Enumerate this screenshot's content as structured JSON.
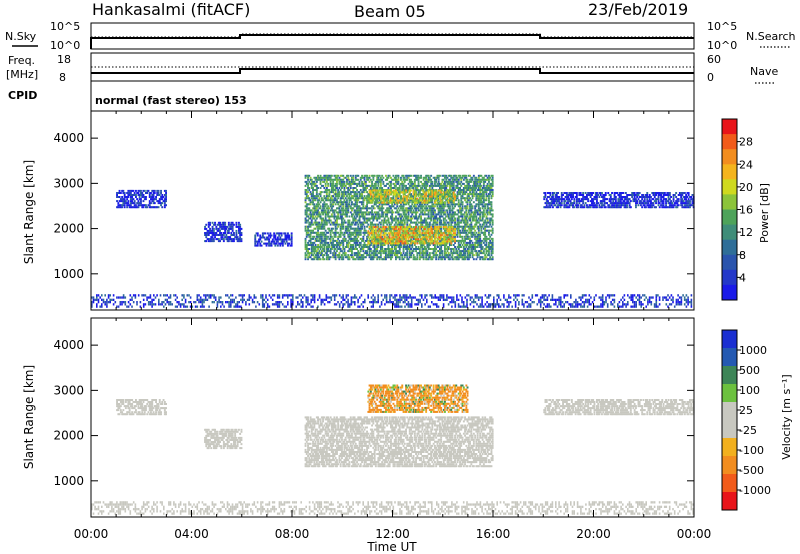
{
  "header": {
    "station": "Hankasalmi (fitACF)",
    "beam": "Beam 05",
    "date": "23/Feb/2019"
  },
  "params": {
    "nsky_label": "N.Sky",
    "nsky_ticks": [
      "10^5",
      "10^0"
    ],
    "nsearch_label": "N.Search",
    "nsearch_ticks": [
      "10^5",
      "10^0"
    ],
    "freq_label": "Freq.",
    "freq_unit": "[MHz]",
    "freq_ticks": [
      "18",
      "8"
    ],
    "nave_label": "Nave",
    "nave_ticks": [
      "60",
      "0"
    ],
    "cpid_label": "CPID",
    "cpid_text": "normal (fast stereo) 153"
  },
  "axes": {
    "ylabel": "Slant Range [km]",
    "xlabel": "Time UT",
    "x_ticks": [
      "00:00",
      "04:00",
      "08:00",
      "12:00",
      "16:00",
      "20:00",
      "00:00"
    ],
    "y_ticks": [
      "4000",
      "3000",
      "2000",
      "1000"
    ]
  },
  "colorbars": {
    "power": {
      "label": "Power [dB]",
      "ticks": [
        "28",
        "24",
        "20",
        "16",
        "12",
        "8",
        "4"
      ],
      "colors": [
        "#e8141a",
        "#f25b1a",
        "#f28d1f",
        "#f4b41d",
        "#cfd91f",
        "#8cc43a",
        "#4ea35a",
        "#3f8d79",
        "#2f6e98",
        "#2a54ad",
        "#2438c9",
        "#1a1ae8"
      ]
    },
    "velocity": {
      "label": "Velocity [m s⁻¹]",
      "ticks": [
        "1000",
        "500",
        "100",
        "25",
        "-25",
        "-100",
        "-500",
        "-1000"
      ],
      "colors": [
        "#1a2fd1",
        "#2459b2",
        "#3d8557",
        "#6cc13f",
        "#c8c8c0",
        "#c8c8c0",
        "#f2b01e",
        "#f28d1f",
        "#f25b1a",
        "#e8141a"
      ]
    }
  },
  "chart_data": [
    {
      "type": "heatmap",
      "name": "Power",
      "title": "",
      "ylabel": "Slant Range [km]",
      "xlabel": "",
      "xlim": [
        "00:00",
        "00:00"
      ],
      "ylim": [
        200,
        4600
      ],
      "regions": [
        {
          "t_start": "01:00",
          "t_end": "03:00",
          "r_start": 2450,
          "r_end": 2850,
          "level_db": 8
        },
        {
          "t_start": "04:30",
          "t_end": "06:00",
          "r_start": 1700,
          "r_end": 2150,
          "level_db": 8
        },
        {
          "t_start": "06:30",
          "t_end": "08:00",
          "r_start": 1600,
          "r_end": 1900,
          "level_db": 8
        },
        {
          "t_start": "08:30",
          "t_end": "16:00",
          "r_start": 1300,
          "r_end": 3150,
          "level_db": 16
        },
        {
          "t_start": "11:00",
          "t_end": "14:30",
          "r_start": 2550,
          "r_end": 2850,
          "level_db": 22
        },
        {
          "t_start": "11:00",
          "t_end": "14:30",
          "r_start": 1650,
          "r_end": 2050,
          "level_db": 24
        },
        {
          "t_start": "18:00",
          "t_end": "23:59",
          "r_start": 2450,
          "r_end": 2800,
          "level_db": 8
        }
      ]
    },
    {
      "type": "heatmap",
      "name": "Velocity",
      "title": "",
      "ylabel": "Slant Range [km]",
      "xlabel": "Time UT",
      "xlim": [
        "00:00",
        "00:00"
      ],
      "ylim": [
        200,
        4600
      ],
      "regions": [
        {
          "t_start": "01:00",
          "t_end": "03:00",
          "r_start": 2450,
          "r_end": 2800,
          "velocity_ms": 0
        },
        {
          "t_start": "04:30",
          "t_end": "06:00",
          "r_start": 1700,
          "r_end": 2150,
          "velocity_ms": 0
        },
        {
          "t_start": "08:30",
          "t_end": "16:00",
          "r_start": 1300,
          "r_end": 2400,
          "velocity_ms": 0
        },
        {
          "t_start": "11:00",
          "t_end": "15:00",
          "r_start": 2500,
          "r_end": 3100,
          "velocity_ms": -150
        },
        {
          "t_start": "18:00",
          "t_end": "23:59",
          "r_start": 2450,
          "r_end": 2800,
          "velocity_ms": 0
        }
      ]
    }
  ]
}
